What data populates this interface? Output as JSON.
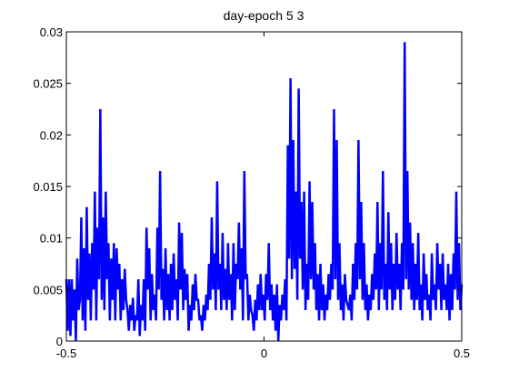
{
  "chart_data": {
    "type": "line",
    "title": "day-epoch 5  3",
    "xlabel": "",
    "ylabel": "",
    "xlim": [
      -0.5,
      0.5
    ],
    "ylim": [
      0,
      0.03
    ],
    "xticks": [
      -0.5,
      0,
      0.5
    ],
    "xtick_labels": [
      "-0.5",
      "0",
      "0.5"
    ],
    "yticks": [
      0,
      0.005,
      0.01,
      0.015,
      0.02,
      0.025,
      0.03
    ],
    "ytick_labels": [
      "0",
      "0.005",
      "0.01",
      "0.015",
      "0.02",
      "0.025",
      "0.03"
    ],
    "grid": false,
    "legend": "none",
    "line_color": "#0000ff",
    "series": [
      {
        "values_description_omitted": true,
        "x_start": -0.5,
        "x_end": 0.5,
        "y": [
          0.006,
          0.001,
          0.006,
          0.0005,
          0.006,
          0.002,
          0.005,
          0.0,
          0.008,
          0.003,
          0.004,
          0.012,
          0.002,
          0.009,
          0.001,
          0.013,
          0.004,
          0.0085,
          0.002,
          0.0095,
          0.005,
          0.0145,
          0.002,
          0.011,
          0.006,
          0.0225,
          0.004,
          0.012,
          0.003,
          0.0145,
          0.006,
          0.0095,
          0.002,
          0.008,
          0.004,
          0.0095,
          0.002,
          0.009,
          0.005,
          0.0075,
          0.002,
          0.006,
          0.003,
          0.007,
          0.004,
          0.003,
          0.001,
          0.0035,
          0.002,
          0.0042,
          0.001,
          0.0025,
          0.002,
          0.006,
          0.0005,
          0.0035,
          0.002,
          0.006,
          0.001,
          0.011,
          0.005,
          0.009,
          0.002,
          0.0065,
          0.003,
          0.0045,
          0.002,
          0.011,
          0.005,
          0.0165,
          0.004,
          0.007,
          0.002,
          0.009,
          0.003,
          0.0065,
          0.002,
          0.0075,
          0.003,
          0.0085,
          0.004,
          0.006,
          0.002,
          0.0115,
          0.005,
          0.0105,
          0.003,
          0.007,
          0.004,
          0.0065,
          0.001,
          0.0035,
          0.002,
          0.0055,
          0.003,
          0.0065,
          0.004,
          0.004,
          0.002,
          0.0025,
          0.001,
          0.0035,
          0.002,
          0.0045,
          0.003,
          0.0075,
          0.004,
          0.012,
          0.005,
          0.0085,
          0.003,
          0.0155,
          0.005,
          0.0075,
          0.003,
          0.0105,
          0.004,
          0.007,
          0.003,
          0.0095,
          0.004,
          0.0065,
          0.002,
          0.0095,
          0.003,
          0.0075,
          0.006,
          0.0115,
          0.005,
          0.009,
          0.002,
          0.0165,
          0.006,
          0.0065,
          0.002,
          0.0045,
          0.003,
          0.0025,
          0.001,
          0.004,
          0.002,
          0.0055,
          0.003,
          0.0065,
          0.003,
          0.0045,
          0.002,
          0.0065,
          0.004,
          0.0095,
          0.003,
          0.0055,
          0.002,
          0.0045,
          0.001,
          0.0055,
          0.0,
          0.0035,
          0.002,
          0.0045,
          0.003,
          0.006,
          0.002,
          0.019,
          0.008,
          0.0255,
          0.006,
          0.0195,
          0.007,
          0.0145,
          0.004,
          0.0245,
          0.008,
          0.0135,
          0.005,
          0.0145,
          0.003,
          0.0075,
          0.004,
          0.0155,
          0.006,
          0.0135,
          0.005,
          0.0095,
          0.003,
          0.0065,
          0.002,
          0.0075,
          0.003,
          0.0055,
          0.002,
          0.0045,
          0.003,
          0.0065,
          0.004,
          0.0075,
          0.005,
          0.0225,
          0.006,
          0.0195,
          0.004,
          0.0095,
          0.003,
          0.0055,
          0.002,
          0.0065,
          0.004,
          0.0035,
          0.003,
          0.0045,
          0.002,
          0.0075,
          0.004,
          0.0095,
          0.005,
          0.0195,
          0.006,
          0.0135,
          0.004,
          0.0095,
          0.003,
          0.0055,
          0.002,
          0.0045,
          0.003,
          0.0065,
          0.004,
          0.0085,
          0.005,
          0.0135,
          0.003,
          0.0095,
          0.005,
          0.0165,
          0.004,
          0.0075,
          0.003,
          0.0125,
          0.005,
          0.0095,
          0.003,
          0.0075,
          0.004,
          0.0105,
          0.005,
          0.0075,
          0.003,
          0.0095,
          0.005,
          0.029,
          0.006,
          0.0165,
          0.005,
          0.0115,
          0.004,
          0.0095,
          0.003,
          0.0075,
          0.004,
          0.0105,
          0.003,
          0.0055,
          0.002,
          0.0085,
          0.004,
          0.0065,
          0.003,
          0.0045,
          0.002,
          0.0085,
          0.004,
          0.0055,
          0.003,
          0.0095,
          0.005,
          0.0075,
          0.003,
          0.0085,
          0.004,
          0.0055,
          0.003,
          0.0075,
          0.002,
          0.0065,
          0.003,
          0.0085,
          0.005,
          0.0145,
          0.004,
          0.0095,
          0.003,
          0.0055
        ]
      }
    ]
  }
}
